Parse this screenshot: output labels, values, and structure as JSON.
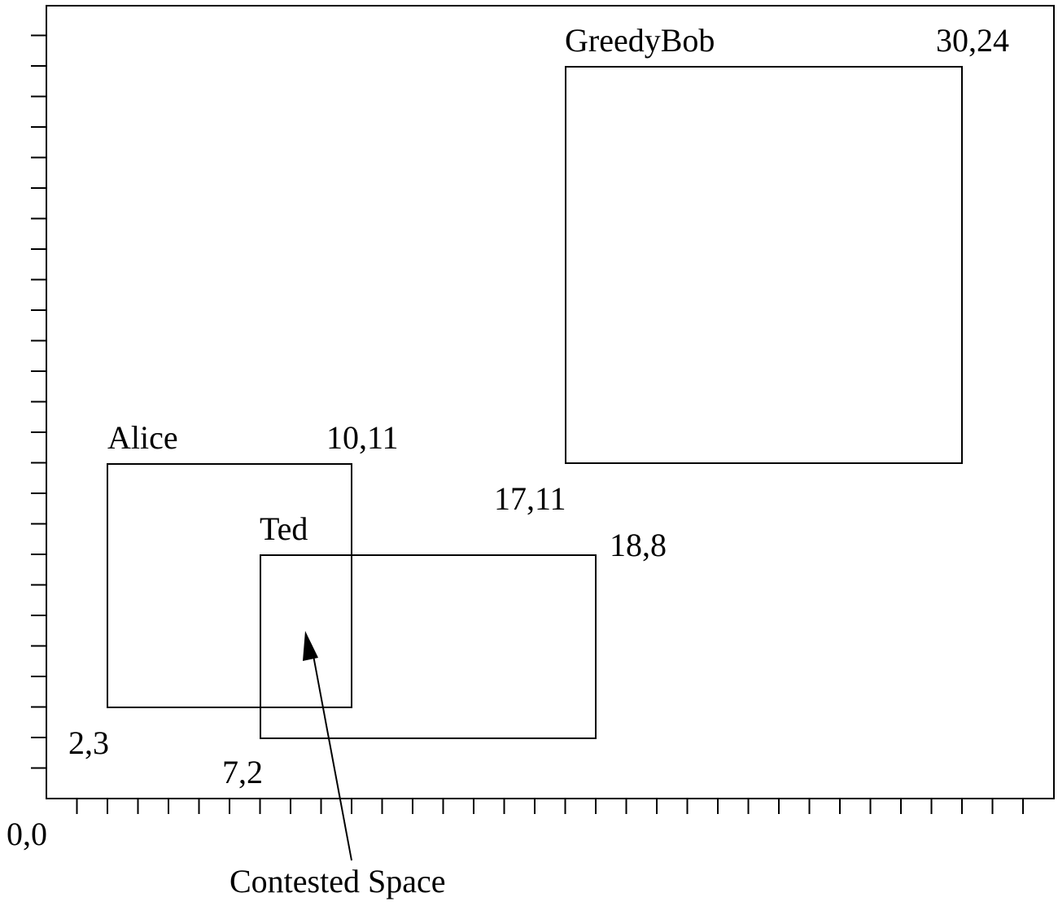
{
  "diagram": {
    "origin_label": "0,0",
    "x_ticks": 32,
    "y_ticks": 25,
    "regions": [
      {
        "id": "alice",
        "name": "Alice",
        "x1": 2,
        "y1": 3,
        "x2": 10,
        "y2": 11,
        "lower_left_label": "2,3",
        "upper_right_label": "10,11"
      },
      {
        "id": "ted",
        "name": "Ted",
        "x1": 7,
        "y1": 2,
        "x2": 18,
        "y2": 8,
        "lower_left_label": "7,2",
        "upper_right_label": "18,8"
      },
      {
        "id": "greedybob",
        "name": "GreedyBob",
        "x1": 17,
        "y1": 11,
        "x2": 30,
        "y2": 24,
        "lower_left_label": "17,11",
        "upper_right_label": "30,24"
      }
    ],
    "annotation": {
      "text": "Contested Space",
      "points_to": [
        8.5,
        5.5
      ]
    }
  }
}
